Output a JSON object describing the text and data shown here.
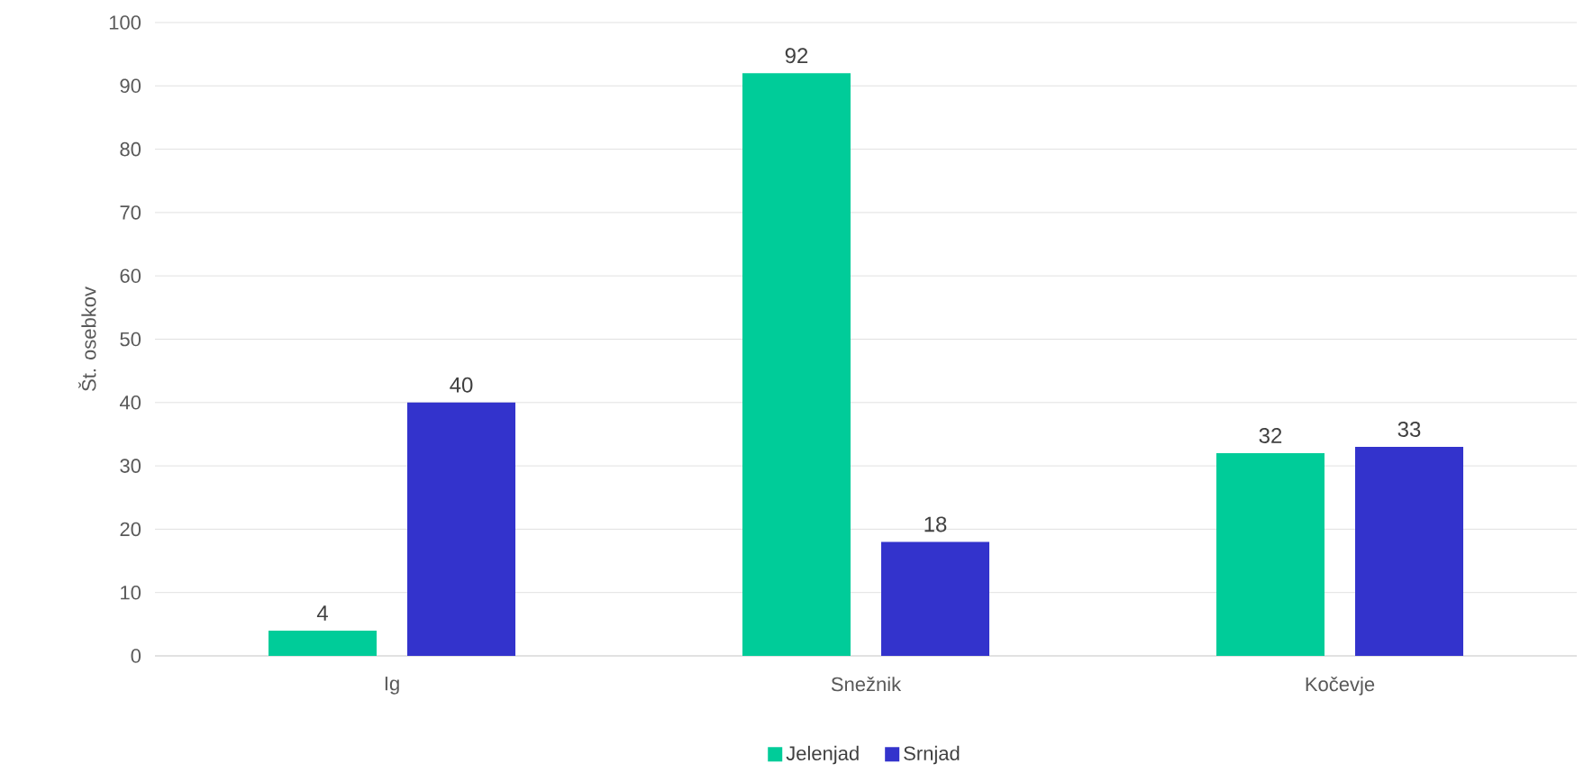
{
  "chart_data": {
    "type": "bar",
    "ylabel": "Št. osebkov",
    "categories": [
      "Ig",
      "Snežnik",
      "Kočevje"
    ],
    "series": [
      {
        "name": "Jelenjad",
        "color": "#00cc99",
        "values": [
          4,
          92,
          32
        ]
      },
      {
        "name": "Srnjad",
        "color": "#3333cc",
        "values": [
          40,
          18,
          33
        ]
      }
    ],
    "ylim": [
      0,
      100
    ],
    "yticks": [
      0,
      10,
      20,
      30,
      40,
      50,
      60,
      70,
      80,
      90,
      100
    ],
    "grid": "y",
    "legend": "bottom",
    "data_labels": true
  }
}
